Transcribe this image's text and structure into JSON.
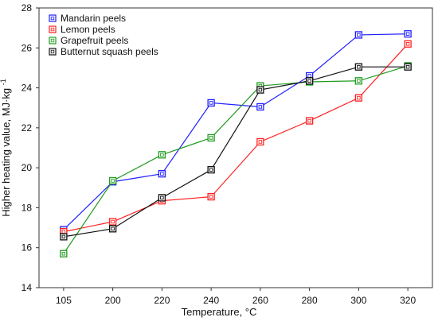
{
  "chart_data": {
    "type": "line",
    "categories": [
      "105",
      "200",
      "220",
      "240",
      "260",
      "280",
      "300",
      "320"
    ],
    "xlabel": "Temperature, °C",
    "ylabel": {
      "base": "Higher heating value, MJ·kg",
      "superscript": "-1"
    },
    "ylim": [
      14,
      28
    ],
    "yticks": [
      14,
      16,
      18,
      20,
      22,
      24,
      26,
      28
    ],
    "grid": false,
    "legend_position": "top-left",
    "series": [
      {
        "name": "Mandarin peels",
        "color": "#1f1fff",
        "values": [
          16.9,
          19.3,
          19.7,
          23.25,
          23.05,
          24.6,
          26.65,
          26.7
        ]
      },
      {
        "name": "Lemon peels",
        "color": "#ff1f1f",
        "values": [
          16.8,
          17.3,
          18.35,
          18.55,
          21.3,
          22.35,
          23.5,
          26.2
        ]
      },
      {
        "name": "Grapefruit peels",
        "color": "#1f9b1f",
        "values": [
          15.7,
          19.35,
          20.65,
          21.5,
          24.1,
          24.3,
          24.35,
          25.1
        ]
      },
      {
        "name": "Butternut squash peels",
        "color": "#111111",
        "values": [
          16.55,
          16.95,
          18.5,
          19.9,
          23.9,
          24.35,
          25.05,
          25.05
        ]
      }
    ]
  }
}
